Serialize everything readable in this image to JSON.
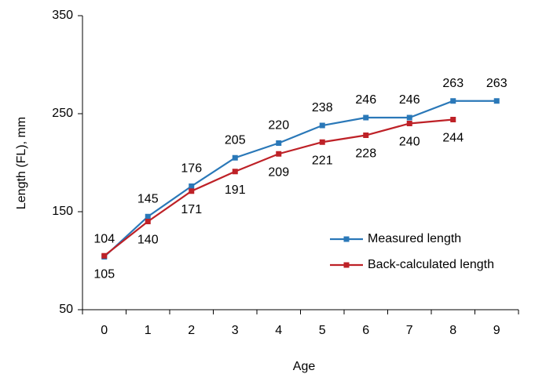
{
  "chart_data": {
    "type": "line",
    "x_label": "Age",
    "y_label": "Length (FL), mm",
    "categories": [
      "0",
      "1",
      "2",
      "3",
      "4",
      "5",
      "6",
      "7",
      "8",
      "9"
    ],
    "series": [
      {
        "name": "Measured length",
        "color": "#2a78b8",
        "values": [
          104,
          145,
          176,
          205,
          220,
          238,
          246,
          246,
          263,
          263
        ],
        "label_side": "above"
      },
      {
        "name": "Back-calculated length",
        "color": "#be2127",
        "values": [
          105,
          140,
          171,
          191,
          209,
          221,
          228,
          240,
          244,
          null
        ],
        "label_side": "below"
      }
    ],
    "ylim": [
      50,
      350
    ],
    "yticks": [
      50,
      150,
      250,
      350
    ],
    "legend": "right"
  }
}
